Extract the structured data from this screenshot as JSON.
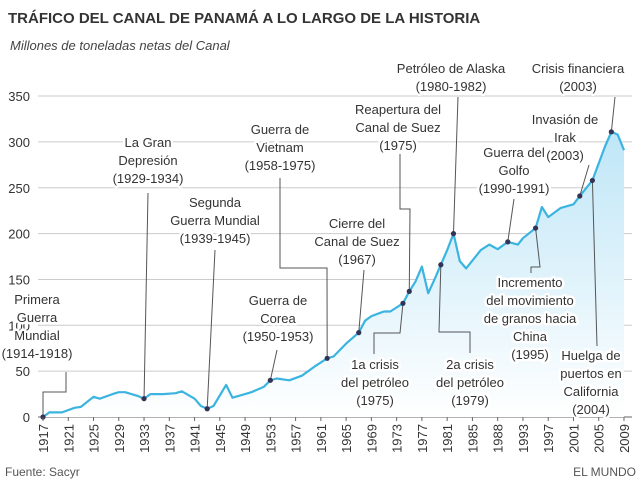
{
  "chart_data": {
    "type": "area",
    "title": "TRÁFICO DEL CANAL DE PANAMÁ A LO LARGO DE LA HISTORIA",
    "subtitle": "Millones de toneladas netas del Canal",
    "xlabel": "",
    "ylabel": "",
    "ylim": [
      0,
      350
    ],
    "yticks": [
      0,
      50,
      100,
      150,
      200,
      250,
      300,
      350
    ],
    "xticks": [
      "1917",
      "1921",
      "1925",
      "1929",
      "1933",
      "1937",
      "1941",
      "1945",
      "1949",
      "1953",
      "1957",
      "1961",
      "1965",
      "1969",
      "1973",
      "1977",
      "1981",
      "1985",
      "1988",
      "1993",
      "1997",
      "2001",
      "2005",
      "2009"
    ],
    "grid": true,
    "line_color": "#3bb4e0",
    "fill_color": "#bfe6f7",
    "series": [
      {
        "x": [
          1917,
          1918,
          1920,
          1922,
          1923,
          1925,
          1926,
          1928,
          1929,
          1930,
          1932,
          1933,
          1934,
          1936,
          1938,
          1939,
          1941,
          1942,
          1943,
          1944,
          1946,
          1947,
          1949,
          1950,
          1952,
          1953,
          1954,
          1956,
          1958,
          1960,
          1962,
          1963,
          1965,
          1967,
          1968,
          1969,
          1971,
          1972,
          1974,
          1975,
          1976,
          1977,
          1978,
          1979,
          1980,
          1981,
          1982,
          1983,
          1984,
          1986,
          1987,
          1988,
          1990,
          1992,
          1993,
          1995,
          1996,
          1997,
          1999,
          2001,
          2002,
          2004,
          2006,
          2007,
          2008,
          2009
        ],
        "y": [
          0,
          5,
          5,
          10,
          11,
          22,
          20,
          25,
          27,
          27,
          23,
          20,
          25,
          25,
          26,
          28,
          20,
          12,
          9,
          12,
          35,
          21,
          25,
          27,
          33,
          40,
          42,
          40,
          45,
          55,
          64,
          66,
          80,
          92,
          105,
          110,
          115,
          115,
          124,
          137,
          148,
          164,
          135,
          150,
          166,
          182,
          200,
          170,
          162,
          182,
          188,
          183,
          191,
          188,
          195,
          206,
          229,
          218,
          228,
          232,
          241,
          258,
          295,
          311,
          308,
          291
        ]
      }
    ],
    "annotations": [
      {
        "lines": [
          "Primera",
          "Guerra",
          "Mundial",
          "(1914-1918)"
        ],
        "year": 1917
      },
      {
        "lines": [
          "La Gran",
          "Depresión",
          "(1929-1934)"
        ],
        "year": 1933
      },
      {
        "lines": [
          "Segunda",
          "Guerra Mundial",
          "(1939-1945)"
        ],
        "year": 1943
      },
      {
        "lines": [
          "Guerra de",
          "Vietnam",
          "(1958-1975)"
        ],
        "year": 1962
      },
      {
        "lines": [
          "Guerra de",
          "Corea",
          "(1950-1953)"
        ],
        "year": 1953
      },
      {
        "lines": [
          "Reapertura del",
          "Canal de Suez",
          "(1975)"
        ],
        "year": 1975
      },
      {
        "lines": [
          "Cierre del",
          "Canal de Suez",
          "(1967)"
        ],
        "year": 1967
      },
      {
        "lines": [
          "Petróleo de Alaska",
          "(1980-1982)"
        ],
        "year": 1982
      },
      {
        "lines": [
          "Crisis financiera",
          "(2003)"
        ],
        "year": 2007
      },
      {
        "lines": [
          "Invasión de",
          "Irak",
          "(2003)"
        ],
        "year": 2002
      },
      {
        "lines": [
          "Guerra del",
          "Golfo",
          "(1990-1991)"
        ],
        "year": 1990
      },
      {
        "lines": [
          "Incremento",
          "del movimiento",
          "de granos hacia",
          "China",
          "(1995)"
        ],
        "year": 1995
      },
      {
        "lines": [
          "Huelga de",
          "puertos en",
          "California",
          "(2004)"
        ],
        "year": 2004
      },
      {
        "lines": [
          "1a crisis",
          "del petróleo",
          "(1975)"
        ],
        "year": 1974
      },
      {
        "lines": [
          "2a crisis",
          "del petróleo",
          "(1979)"
        ],
        "year": 1980
      }
    ]
  },
  "footer": {
    "source": "Fuente: Sacyr",
    "brand": "EL MUNDO"
  }
}
